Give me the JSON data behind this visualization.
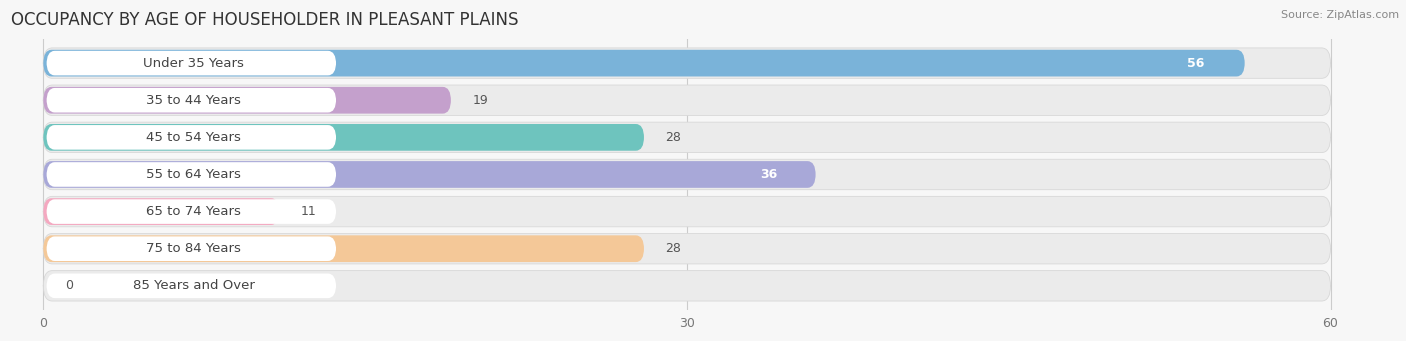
{
  "title": "OCCUPANCY BY AGE OF HOUSEHOLDER IN PLEASANT PLAINS",
  "source": "Source: ZipAtlas.com",
  "categories": [
    "Under 35 Years",
    "35 to 44 Years",
    "45 to 54 Years",
    "55 to 64 Years",
    "65 to 74 Years",
    "75 to 84 Years",
    "85 Years and Over"
  ],
  "values": [
    56,
    19,
    28,
    36,
    11,
    28,
    0
  ],
  "bar_colors": [
    "#7ab3d9",
    "#c4a0cc",
    "#6ec4be",
    "#a8a8d8",
    "#f4a8c0",
    "#f4c898",
    "#f4b8b8"
  ],
  "xlim_data": [
    0,
    60
  ],
  "xticks": [
    0,
    30,
    60
  ],
  "bg_color": "#f7f7f7",
  "bar_bg_color": "#ebebeb",
  "title_fontsize": 12,
  "label_fontsize": 9.5,
  "value_fontsize": 9
}
